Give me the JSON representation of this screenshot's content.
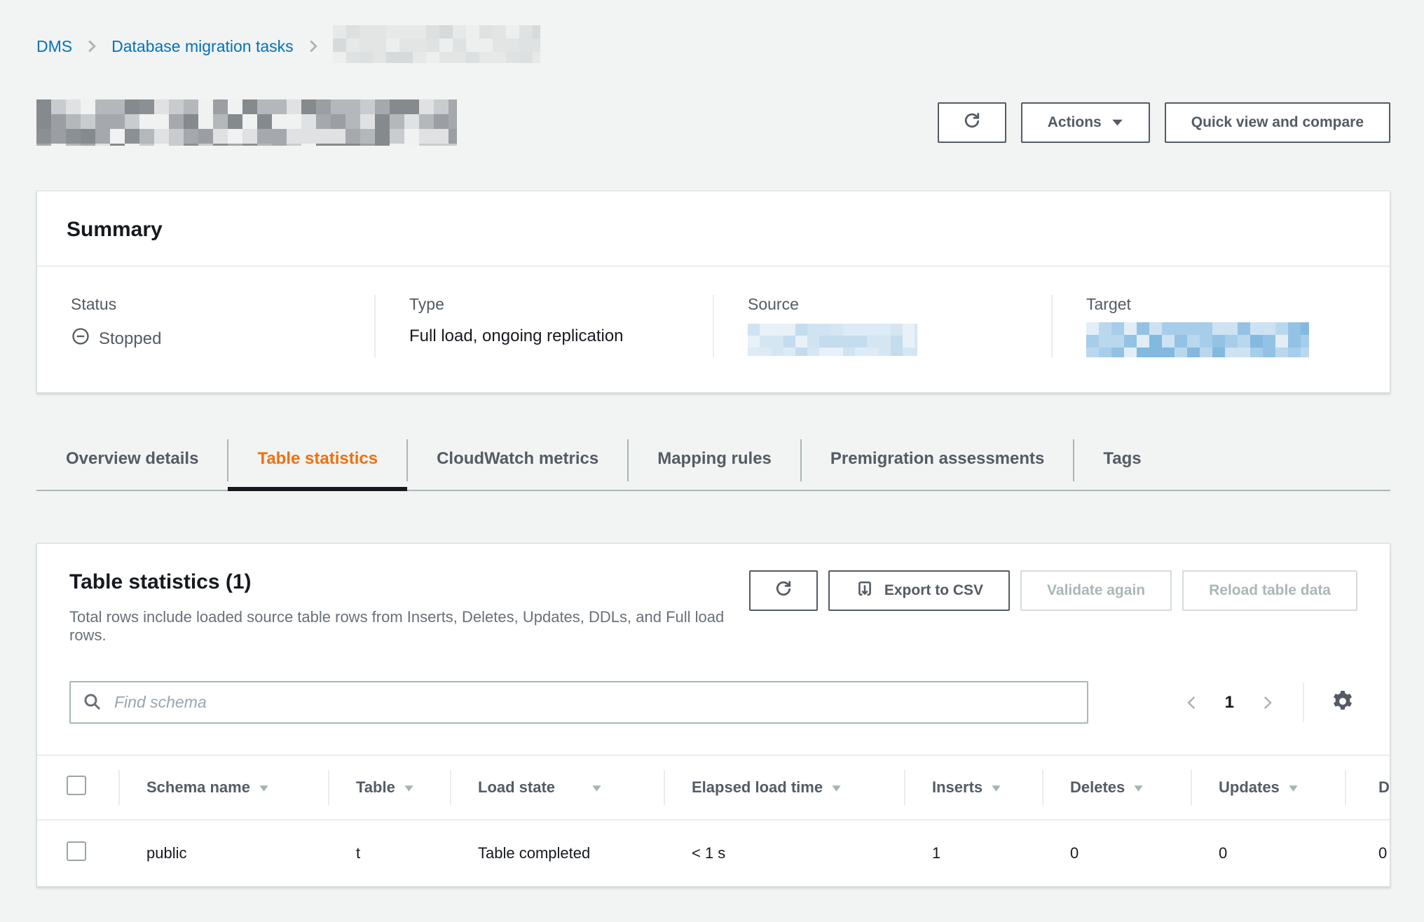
{
  "breadcrumb": {
    "items": [
      {
        "label": "DMS"
      },
      {
        "label": "Database migration tasks"
      }
    ],
    "last_item_redacted": true
  },
  "header": {
    "title_redacted": true,
    "refresh_icon": "refresh-icon",
    "actions_label": "Actions",
    "quick_view_label": "Quick view and compare"
  },
  "summary": {
    "title": "Summary",
    "status": {
      "label": "Status",
      "value": "Stopped",
      "icon": "stopped-icon"
    },
    "type": {
      "label": "Type",
      "value": "Full load, ongoing replication"
    },
    "source": {
      "label": "Source",
      "value_redacted": true
    },
    "target": {
      "label": "Target",
      "value_redacted": true
    }
  },
  "tabs": [
    {
      "label": "Overview details",
      "active": false
    },
    {
      "label": "Table statistics",
      "active": true
    },
    {
      "label": "CloudWatch metrics",
      "active": false
    },
    {
      "label": "Mapping rules",
      "active": false
    },
    {
      "label": "Premigration assessments",
      "active": false
    },
    {
      "label": "Tags",
      "active": false
    }
  ],
  "stats": {
    "title": "Table statistics (1)",
    "description": "Total rows include loaded source table rows from Inserts, Deletes, Updates, DDLs, and Full load rows.",
    "buttons": {
      "refresh_icon": "refresh-icon",
      "export": "Export to CSV",
      "validate": "Validate again",
      "validate_disabled": true,
      "reload": "Reload table data",
      "reload_disabled": true
    },
    "search_placeholder": "Find schema",
    "pagination": {
      "page": "1",
      "prev_disabled": true,
      "next_disabled": true
    },
    "columns": [
      {
        "label": "Schema name",
        "sortable": true
      },
      {
        "label": "Table",
        "sortable": true
      },
      {
        "label": "Load state",
        "sortable": true
      },
      {
        "label": "Elapsed load time",
        "sortable": true
      },
      {
        "label": "Inserts",
        "sortable": true
      },
      {
        "label": "Deletes",
        "sortable": true
      },
      {
        "label": "Updates",
        "sortable": true
      },
      {
        "label": "D",
        "sortable": false,
        "clipped": true
      }
    ],
    "rows": [
      {
        "schema": "public",
        "table": "t",
        "load_state": "Table completed",
        "elapsed": "< 1 s",
        "inserts": "1",
        "deletes": "0",
        "updates": "0",
        "last_clipped": "0"
      }
    ]
  },
  "colors": {
    "page_bg": "#f2f3f3",
    "link_blue": "#0073bb",
    "active_tab_orange": "#ec7211",
    "active_tab_underline": "#16191f",
    "secondary_text": "#545b64",
    "disabled_text": "#aab7b8",
    "divider": "#eaeded"
  },
  "redaction": {
    "breadcrumb_item": [
      "#e7e9e9",
      "#dfe2e2",
      "#d6dada",
      "#edefef",
      "#dce0e0",
      "#e3e5e5"
    ],
    "page_title": [
      "#9b9fa3",
      "#8b9094",
      "#b4b8bb",
      "#c9ccce",
      "#dfe1e2",
      "#a5a9ad",
      "#f0f1f1",
      "#848a8e"
    ],
    "source_value": [
      "#dcebf5",
      "#cfe3f1",
      "#c3dcee",
      "#e8f1f8",
      "#d5e6f3"
    ],
    "target_value": [
      "#a6cde9",
      "#93c2e4",
      "#b9d8ee",
      "#cde2f3",
      "#84b9df",
      "#e1eef7"
    ]
  }
}
